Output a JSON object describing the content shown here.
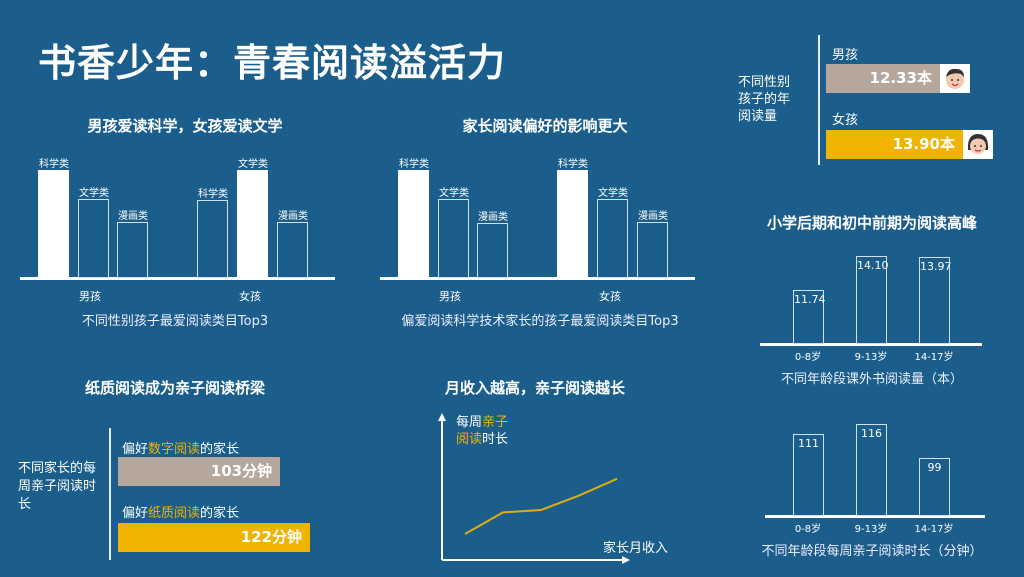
{
  "title": "书香少年：青春阅读溢活力",
  "colors": {
    "background": "#1b5e8b",
    "accent": "#f0b400",
    "neutral": "#b5a79b"
  },
  "chart_data": [
    {
      "type": "bar",
      "title": "男孩爱读科学，女孩爱读文学",
      "caption": "不同性别孩子最爱阅读类目Top3",
      "groups": [
        {
          "name": "男孩",
          "bars": [
            {
              "label": "科学类",
              "rank": 1,
              "relative": 100,
              "highlight": true
            },
            {
              "label": "文学类",
              "rank": 2,
              "relative": 73
            },
            {
              "label": "漫画类",
              "rank": 3,
              "relative": 52
            }
          ]
        },
        {
          "name": "女孩",
          "bars": [
            {
              "label": "科学类",
              "rank": 2,
              "relative": 72
            },
            {
              "label": "文学类",
              "rank": 1,
              "relative": 100,
              "highlight": true
            },
            {
              "label": "漫画类",
              "rank": 3,
              "relative": 52
            }
          ]
        }
      ]
    },
    {
      "type": "bar",
      "title": "家长阅读偏好的影响更大",
      "caption": "偏爱阅读科学技术家长的孩子最爱阅读类目Top3",
      "groups": [
        {
          "name": "男孩",
          "bars": [
            {
              "label": "科学类",
              "rank": 1,
              "relative": 100,
              "highlight": true
            },
            {
              "label": "文学类",
              "rank": 2,
              "relative": 73
            },
            {
              "label": "漫画类",
              "rank": 3,
              "relative": 51
            }
          ]
        },
        {
          "name": "女孩",
          "bars": [
            {
              "label": "科学类",
              "rank": 1,
              "relative": 100,
              "highlight": true
            },
            {
              "label": "文学类",
              "rank": 2,
              "relative": 73
            },
            {
              "label": "漫画类",
              "rank": 3,
              "relative": 52
            }
          ]
        }
      ]
    },
    {
      "type": "bar",
      "orientation": "horizontal",
      "label": "不同性别孩子的年阅读量",
      "categories": [
        "男孩",
        "女孩"
      ],
      "values": [
        12.33,
        13.9
      ],
      "value_labels": [
        "12.33本",
        "13.90本"
      ]
    },
    {
      "type": "bar",
      "title": "小学后期和初中前期为阅读高峰",
      "caption": "不同年龄段课外书阅读量（本）",
      "categories": [
        "0-8岁",
        "9-13岁",
        "14-17岁"
      ],
      "values": [
        11.74,
        14.1,
        13.97
      ],
      "value_labels": [
        "11.74",
        "14.10",
        "13.97"
      ],
      "ylim": [
        8,
        15
      ]
    },
    {
      "type": "bar",
      "caption": "不同年龄段每周亲子阅读时长（分钟）",
      "categories": [
        "0-8岁",
        "9-13岁",
        "14-17岁"
      ],
      "values": [
        111,
        116,
        99
      ],
      "value_labels": [
        "111",
        "116",
        "99"
      ],
      "ylim": [
        70,
        120
      ]
    },
    {
      "type": "bar",
      "orientation": "horizontal",
      "title": "纸质阅读成为亲子阅读桥梁",
      "label": "不同家长的每周亲子阅读时长",
      "categories": [
        {
          "pre": "偏好",
          "hl": "数字阅读",
          "post": "的家长"
        },
        {
          "pre": "偏好",
          "hl": "纸质阅读",
          "post": "的家长"
        }
      ],
      "values": [
        103,
        122
      ],
      "value_labels": [
        "103分钟",
        "122分钟"
      ]
    },
    {
      "type": "line",
      "title": "月收入越高，亲子阅读越长",
      "ylabel": {
        "pre": "每周",
        "hl1": "亲子",
        "hl2": "阅读",
        "post": "时长"
      },
      "xlabel": "家长月收入",
      "x": [
        1,
        2,
        3,
        4,
        5
      ],
      "y": [
        1.0,
        1.9,
        2.0,
        2.6,
        3.3
      ]
    }
  ]
}
